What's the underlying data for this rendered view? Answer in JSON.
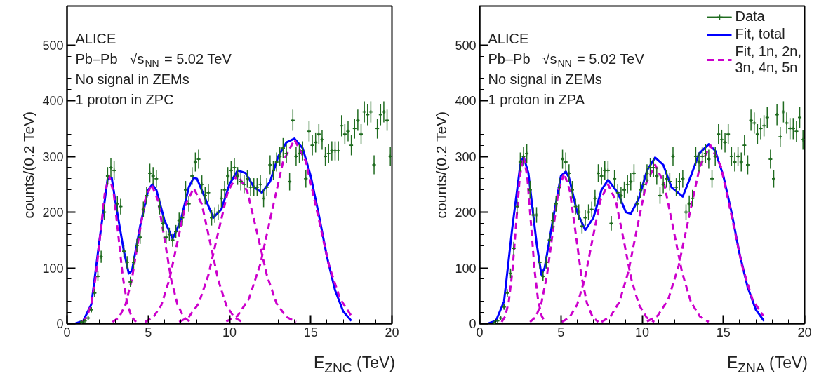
{
  "chart_data": [
    {
      "type": "line",
      "xlabel": "E$_{ZNC}$ (TeV)",
      "ylabel": "counts/(0.2 TeV)",
      "annotations": [
        "ALICE",
        "Pb–Pb",
        "√s$_{NN}$ = 5.02 TeV",
        "No signal in ZEMs",
        "1 proton in ZPC"
      ],
      "xlim": [
        0,
        20
      ],
      "ylim": [
        0,
        570
      ],
      "xticks": [
        0,
        5,
        10,
        15,
        20
      ],
      "yticks": [
        0,
        100,
        200,
        300,
        400,
        500
      ],
      "grid": false,
      "legend": false,
      "series": [
        {
          "type": "scatter",
          "marker": "cross",
          "color": "#1f6b1f",
          "x": [
            0.9,
            1.1,
            1.3,
            1.5,
            1.7,
            1.9,
            2.1,
            2.3,
            2.5,
            2.7,
            2.9,
            3.1,
            3.3,
            3.5,
            3.7,
            3.9,
            4.1,
            4.3,
            4.5,
            4.7,
            4.9,
            5.1,
            5.3,
            5.5,
            5.7,
            5.9,
            6.1,
            6.3,
            6.5,
            6.7,
            6.9,
            7.1,
            7.3,
            7.5,
            7.7,
            7.9,
            8.1,
            8.3,
            8.5,
            8.7,
            8.9,
            9.1,
            9.3,
            9.5,
            9.7,
            9.9,
            10.1,
            10.3,
            10.5,
            10.7,
            10.9,
            11.1,
            11.3,
            11.5,
            11.7,
            11.9,
            12.1,
            12.3,
            12.5,
            12.7,
            12.9,
            13.1,
            13.3,
            13.5,
            13.7,
            13.9,
            14.1,
            14.3,
            14.5,
            14.7,
            14.9,
            15.1,
            15.3,
            15.5,
            15.7,
            15.9,
            16.1,
            16.3,
            16.5,
            16.7,
            16.9,
            17.1,
            17.3,
            17.5,
            17.7,
            17.9,
            18.1,
            18.3,
            18.5,
            18.7,
            18.9,
            19.1,
            19.3,
            19.5,
            19.7,
            19.9
          ],
          "values": [
            3,
            5,
            10,
            25,
            55,
            85,
            120,
            200,
            265,
            280,
            275,
            215,
            210,
            130,
            110,
            75,
            110,
            140,
            155,
            205,
            230,
            270,
            265,
            260,
            210,
            180,
            155,
            160,
            150,
            165,
            185,
            190,
            240,
            215,
            265,
            290,
            295,
            250,
            230,
            235,
            190,
            195,
            200,
            225,
            240,
            265,
            275,
            280,
            265,
            255,
            250,
            260,
            245,
            245,
            245,
            250,
            225,
            245,
            285,
            275,
            290,
            300,
            315,
            305,
            255,
            365,
            300,
            305,
            310,
            260,
            345,
            320,
            325,
            340,
            330,
            300,
            305,
            310,
            310,
            310,
            355,
            340,
            345,
            320,
            350,
            365,
            340,
            380,
            375,
            380,
            285,
            350,
            375,
            380,
            365,
            300
          ],
          "errors": [
            null,
            null,
            3,
            5,
            7,
            9,
            11,
            14,
            16,
            17,
            17,
            14,
            14,
            11,
            11,
            9,
            11,
            12,
            12,
            14,
            16,
            17,
            16,
            16,
            14,
            14,
            12,
            12,
            12,
            12,
            14,
            14,
            16,
            14,
            16,
            17,
            17,
            16,
            16,
            16,
            14,
            14,
            14,
            16,
            16,
            16,
            17,
            17,
            16,
            16,
            16,
            16,
            16,
            16,
            16,
            16,
            16,
            16,
            17,
            17,
            17,
            17,
            18,
            17,
            16,
            19,
            17,
            17,
            17,
            16,
            18,
            18,
            18,
            18,
            18,
            17,
            17,
            17,
            17,
            17,
            19,
            18,
            18,
            18,
            18,
            19,
            18,
            19,
            19,
            19,
            17,
            18,
            19,
            19,
            19,
            17
          ],
          "xerrors": [
            0.1,
            0.1,
            0.1,
            0.1,
            0.1,
            0.1,
            0.1,
            0.1,
            0.1,
            0.1,
            0.1,
            0.1,
            0.1,
            0.1,
            0.1,
            0.1,
            0.1,
            0.1,
            0.1,
            0.1,
            0.1,
            0.1,
            0.1,
            0.1,
            0.1,
            0.1,
            0.1,
            0.1,
            0.1,
            0.1,
            0.1,
            0.1,
            0.1,
            0.1,
            0.1,
            0.1,
            0.1,
            0.1,
            0.1,
            0.1,
            0.1,
            0.1,
            0.1,
            0.1,
            0.1,
            0.1,
            0.1,
            0.1,
            0.1,
            0.1,
            0.1,
            0.1,
            0.1,
            0.1,
            0.1,
            0.1,
            0.1,
            0.1,
            0.1,
            0.1,
            0.1,
            0.1,
            0.1,
            0.1,
            0.1,
            0.1,
            0.1,
            0.1,
            0.1,
            0.1,
            0.1,
            0.1,
            0.1,
            0.1,
            0.1,
            0.1,
            0.1,
            0.1,
            0.1,
            0.1,
            0.1,
            0.1,
            0.1,
            0.1,
            0.1,
            0.1,
            0.1,
            0.1,
            0.1,
            0.1,
            0.1,
            0.1,
            0.1,
            0.1,
            0.1,
            0.1
          ]
        },
        {
          "line_style": "solid",
          "color": "#0000ff",
          "x": [
            0.5,
            1.0,
            1.5,
            2.0,
            2.5,
            2.75,
            3.0,
            3.5,
            3.8,
            4.0,
            4.5,
            5.0,
            5.25,
            5.5,
            6.0,
            6.5,
            7.0,
            7.5,
            7.8,
            8.0,
            8.5,
            9.0,
            9.5,
            10.0,
            10.5,
            11.0,
            11.5,
            12.0,
            12.5,
            13.0,
            13.5,
            14.0,
            14.5,
            15.0,
            15.5,
            16.0,
            16.5,
            17.0,
            17.5
          ],
          "values": [
            0,
            5,
            35,
            150,
            260,
            262,
            215,
            130,
            90,
            95,
            175,
            240,
            250,
            240,
            185,
            152,
            185,
            245,
            262,
            260,
            225,
            190,
            205,
            250,
            275,
            270,
            245,
            235,
            255,
            300,
            325,
            332,
            315,
            265,
            195,
            120,
            60,
            22,
            5
          ]
        },
        {
          "line_style": "dashed",
          "color": "#cc00cc",
          "x": [
            0.95,
            1.225,
            1.5,
            1.775,
            2.05,
            2.325,
            2.6,
            2.875,
            3.15,
            3.425,
            3.7,
            3.975,
            4.25
          ],
          "values": [
            3,
            12,
            36,
            86,
            161,
            234,
            265,
            234,
            161,
            86,
            36,
            12,
            3
          ]
        },
        {
          "line_style": "dashed",
          "color": "#cc00cc",
          "x": [
            2.8,
            3.2,
            3.6,
            4.0,
            4.4,
            4.8,
            5.2,
            5.6,
            6.0,
            6.4,
            6.8,
            7.2,
            7.6
          ],
          "values": [
            3,
            11,
            34,
            81,
            152,
            221,
            250,
            221,
            152,
            81,
            34,
            11,
            3
          ]
        },
        {
          "line_style": "dashed",
          "color": "#cc00cc",
          "x": [
            4.8,
            5.3,
            5.8,
            6.3,
            6.8,
            7.3,
            7.8,
            8.3,
            8.8,
            9.3,
            9.8,
            10.3,
            10.8
          ],
          "values": [
            3,
            11,
            33,
            79,
            147,
            214,
            243,
            214,
            147,
            79,
            33,
            11,
            3
          ]
        },
        {
          "line_style": "dashed",
          "color": "#cc00cc",
          "x": [
            6.9,
            7.5,
            8.1,
            8.7,
            9.3,
            9.9,
            10.5,
            11.1,
            11.7,
            12.3,
            12.9,
            13.5,
            14.1
          ],
          "values": [
            3,
            12,
            36,
            87,
            163,
            237,
            268,
            237,
            163,
            87,
            36,
            12,
            3
          ]
        },
        {
          "line_style": "dashed",
          "color": "#cc00cc",
          "x": [
            9.8,
            10.5,
            11.2,
            11.9,
            12.6,
            13.3,
            14.0,
            14.7,
            15.4,
            16.1,
            16.8,
            17.5
          ],
          "values": [
            4,
            14,
            45,
            107,
            200,
            291,
            330,
            291,
            200,
            107,
            45,
            14
          ]
        }
      ]
    },
    {
      "type": "line",
      "xlabel": "E$_{ZNA}$ (TeV)",
      "ylabel": "counts/(0.2 TeV)",
      "annotations": [
        "ALICE",
        "Pb–Pb",
        "√s$_{NN}$ = 5.02 TeV",
        "No signal in ZEMs",
        "1 proton in ZPA"
      ],
      "xlim": [
        0,
        20
      ],
      "ylim": [
        0,
        570
      ],
      "xticks": [
        0,
        5,
        10,
        15,
        20
      ],
      "yticks": [
        0,
        100,
        200,
        300,
        400,
        500
      ],
      "grid": false,
      "legend": "top right",
      "series": [
        {
          "name": "Data",
          "type": "scatter",
          "marker": "cross",
          "color": "#1f6b1f",
          "x": [
            0.9,
            1.1,
            1.3,
            1.5,
            1.7,
            1.9,
            2.1,
            2.3,
            2.5,
            2.7,
            2.9,
            3.1,
            3.3,
            3.5,
            3.7,
            3.9,
            4.1,
            4.3,
            4.5,
            4.7,
            4.9,
            5.1,
            5.3,
            5.5,
            5.7,
            5.9,
            6.1,
            6.3,
            6.5,
            6.7,
            6.9,
            7.1,
            7.3,
            7.5,
            7.7,
            7.9,
            8.1,
            8.3,
            8.5,
            8.7,
            8.9,
            9.1,
            9.3,
            9.5,
            9.7,
            9.9,
            10.1,
            10.3,
            10.5,
            10.7,
            10.9,
            11.1,
            11.3,
            11.5,
            11.7,
            11.9,
            12.1,
            12.3,
            12.5,
            12.7,
            12.9,
            13.1,
            13.3,
            13.5,
            13.7,
            13.9,
            14.1,
            14.3,
            14.5,
            14.7,
            14.9,
            15.1,
            15.3,
            15.5,
            15.7,
            15.9,
            16.1,
            16.3,
            16.5,
            16.7,
            16.9,
            17.1,
            17.3,
            17.5,
            17.7,
            17.9,
            18.1,
            18.3,
            18.5,
            18.7,
            18.9,
            19.1,
            19.3,
            19.5,
            19.7,
            19.9
          ],
          "values": [
            2,
            5,
            10,
            30,
            55,
            90,
            135,
            210,
            290,
            300,
            305,
            240,
            195,
            195,
            110,
            85,
            110,
            150,
            185,
            215,
            245,
            295,
            290,
            270,
            240,
            210,
            200,
            175,
            190,
            200,
            205,
            225,
            270,
            265,
            275,
            275,
            180,
            260,
            235,
            230,
            240,
            250,
            255,
            270,
            215,
            240,
            250,
            270,
            280,
            280,
            265,
            230,
            250,
            260,
            255,
            300,
            245,
            255,
            260,
            200,
            215,
            225,
            300,
            290,
            300,
            305,
            295,
            260,
            300,
            340,
            330,
            325,
            340,
            300,
            290,
            300,
            290,
            320,
            285,
            365,
            360,
            340,
            350,
            355,
            370,
            295,
            260,
            375,
            335,
            380,
            360,
            350,
            350,
            345,
            370,
            330
          ],
          "errors": [
            null,
            null,
            null,
            5,
            7,
            9,
            12,
            14,
            17,
            17,
            17,
            16,
            14,
            14,
            11,
            9,
            11,
            12,
            14,
            14,
            16,
            17,
            17,
            16,
            16,
            14,
            14,
            13,
            14,
            14,
            14,
            15,
            16,
            16,
            17,
            17,
            13,
            16,
            15,
            15,
            15,
            16,
            16,
            16,
            15,
            15,
            16,
            16,
            17,
            17,
            16,
            15,
            16,
            16,
            16,
            17,
            16,
            16,
            16,
            14,
            15,
            15,
            17,
            17,
            17,
            17,
            17,
            16,
            17,
            18,
            18,
            18,
            18,
            17,
            17,
            17,
            17,
            18,
            17,
            19,
            19,
            18,
            19,
            19,
            19,
            17,
            16,
            19,
            18,
            19,
            19,
            19,
            19,
            19,
            19,
            18
          ],
          "xerrors": [
            0.1,
            0.1,
            0.1,
            0.1,
            0.1,
            0.1,
            0.1,
            0.1,
            0.1,
            0.1,
            0.1,
            0.1,
            0.1,
            0.1,
            0.1,
            0.1,
            0.1,
            0.1,
            0.1,
            0.1,
            0.1,
            0.1,
            0.1,
            0.1,
            0.1,
            0.1,
            0.1,
            0.1,
            0.1,
            0.1,
            0.1,
            0.1,
            0.1,
            0.1,
            0.1,
            0.1,
            0.1,
            0.1,
            0.1,
            0.1,
            0.1,
            0.1,
            0.1,
            0.1,
            0.1,
            0.1,
            0.1,
            0.1,
            0.1,
            0.1,
            0.1,
            0.1,
            0.1,
            0.1,
            0.1,
            0.1,
            0.1,
            0.1,
            0.1,
            0.1,
            0.1,
            0.1,
            0.1,
            0.1,
            0.1,
            0.1,
            0.1,
            0.1,
            0.1,
            0.1,
            0.1,
            0.1,
            0.1,
            0.1,
            0.1,
            0.1,
            0.1,
            0.1,
            0.1,
            0.1,
            0.1,
            0.1,
            0.1,
            0.1,
            0.1,
            0.1,
            0.1,
            0.1,
            0.1,
            0.1,
            0.1,
            0.1,
            0.1,
            0.1,
            0.1,
            0.1
          ]
        },
        {
          "name": "Fit, total",
          "line_style": "solid",
          "color": "#0000ff",
          "x": [
            0.5,
            1.0,
            1.5,
            2.0,
            2.5,
            2.7,
            3.0,
            3.5,
            3.8,
            4.0,
            4.5,
            5.0,
            5.3,
            5.5,
            6.0,
            6.5,
            7.0,
            7.5,
            7.9,
            8.5,
            9.0,
            9.3,
            9.8,
            10.3,
            10.8,
            11.3,
            11.8,
            12.5,
            13.0,
            13.5,
            14.1,
            14.5,
            15.0,
            15.5,
            16.0,
            16.5,
            17.0,
            17.5
          ],
          "values": [
            0,
            5,
            40,
            170,
            285,
            300,
            270,
            145,
            88,
            100,
            185,
            265,
            273,
            262,
            200,
            168,
            190,
            240,
            258,
            235,
            200,
            197,
            225,
            275,
            298,
            285,
            245,
            228,
            265,
            305,
            322,
            310,
            265,
            200,
            125,
            65,
            25,
            5
          ]
        },
        {
          "name": "Fit, 1n, 2n, 3n, 4n, 5n",
          "line_style": "dashed",
          "color": "#cc00cc",
          "x": [
            1.35,
            1.575,
            1.8,
            2.025,
            2.25,
            2.475,
            2.7,
            2.925,
            3.15,
            3.375,
            3.6,
            3.825,
            4.05
          ],
          "values": [
            3,
            13,
            41,
            97,
            182,
            265,
            300,
            265,
            182,
            97,
            41,
            13,
            3
          ]
        },
        {
          "line_style": "dashed",
          "color": "#cc00cc",
          "x": [
            3.1,
            3.45,
            3.8,
            4.15,
            4.5,
            4.85,
            5.2,
            5.55,
            5.9,
            6.25,
            6.6,
            6.95,
            7.3
          ],
          "values": [
            3,
            12,
            37,
            88,
            164,
            238,
            270,
            238,
            164,
            88,
            37,
            12,
            3
          ]
        },
        {
          "line_style": "dashed",
          "color": "#cc00cc",
          "x": [
            5.05,
            5.525,
            6.0,
            6.475,
            6.95,
            7.425,
            7.9,
            8.375,
            8.85,
            9.325,
            9.8,
            10.275,
            10.75
          ],
          "values": [
            3,
            11,
            34,
            81,
            152,
            221,
            250,
            221,
            152,
            81,
            34,
            11,
            3
          ]
        },
        {
          "line_style": "dashed",
          "color": "#cc00cc",
          "x": [
            7.5,
            8.05,
            8.6,
            9.15,
            9.7,
            10.25,
            10.8,
            11.35,
            11.9,
            12.45,
            13.0,
            13.55,
            14.1
          ],
          "values": [
            3,
            13,
            39,
            93,
            173,
            252,
            285,
            252,
            173,
            93,
            39,
            13,
            3
          ]
        },
        {
          "line_style": "dashed",
          "color": "#cc00cc",
          "x": [
            10.3,
            10.95,
            11.6,
            12.25,
            12.9,
            13.55,
            14.2,
            14.85,
            15.5,
            16.15,
            16.8,
            17.45
          ],
          "values": [
            4,
            14,
            43,
            104,
            194,
            282,
            320,
            282,
            194,
            104,
            43,
            14
          ]
        }
      ]
    }
  ]
}
